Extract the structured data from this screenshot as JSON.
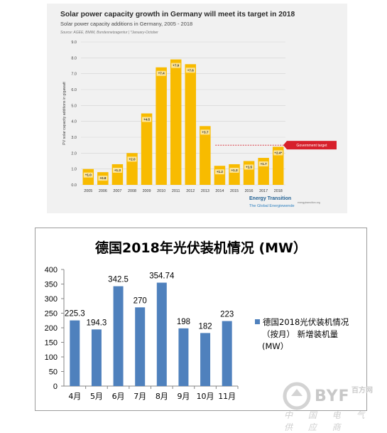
{
  "chart_data": [
    {
      "type": "bar",
      "title": "Solar power capacity growth in Germany will meet its target in 2018",
      "subtitle": "Solar power capacity additions in Germany, 2005 - 2018",
      "source": "Source: AGEE, BMWi, Bundesnetzagentur | *January-October",
      "ylabel": "PV solar capacity additions in gigawatt",
      "ylim": [
        0,
        9
      ],
      "yticks": [
        "0.0",
        "1.0",
        "2.0",
        "3.0",
        "4.0",
        "5.0",
        "6.0",
        "7.0",
        "8.0",
        "9.0"
      ],
      "categories": [
        "2005",
        "2006",
        "2007",
        "2008",
        "2009",
        "2010",
        "2011",
        "2012",
        "2013",
        "2014",
        "2015",
        "2016",
        "2017",
        "2018"
      ],
      "values": [
        1.0,
        0.8,
        1.3,
        2.0,
        4.5,
        7.4,
        7.9,
        7.6,
        3.7,
        1.2,
        1.3,
        1.5,
        1.7,
        2.4
      ],
      "value_labels": [
        "+1.0",
        "+0.8",
        "+1.3",
        "+2.0",
        "+4.5",
        "+7.4",
        "+7.9",
        "+7.6",
        "+3.7",
        "+1.2",
        "+1.3",
        "+1.5",
        "+1.7",
        "+2.4*"
      ],
      "target_label": "Government target",
      "target_value": 2.5,
      "bar_color": "#f8bb00",
      "target_color": "#d7202b",
      "grid": true,
      "branding": {
        "line1": "Energy Transition",
        "line2": "The Global Energiewende",
        "url": "energytransition.org"
      }
    },
    {
      "type": "bar",
      "title": "德国2018年光伏装机情况 (MW）",
      "categories": [
        "4月",
        "5月",
        "6月",
        "7月",
        "8月",
        "9月",
        "10月",
        "11月"
      ],
      "values": [
        225.3,
        194.3,
        342.5,
        270,
        354.74,
        198,
        182,
        223
      ],
      "value_labels": [
        "225.3",
        "194.3",
        "342.5",
        "270",
        "354.74",
        "198",
        "182",
        "223"
      ],
      "ylim": [
        0,
        400
      ],
      "yticks": [
        "0",
        "50",
        "100",
        "150",
        "200",
        "250",
        "300",
        "350",
        "400"
      ],
      "series_name": "德国2018光伏装机情况（按月）新增装机量(MW）",
      "legend_lines": [
        "德国2018光伏装机情况",
        "（按月） 新增装机量",
        "(MW）"
      ],
      "legend_position": "right",
      "bar_color": "#4f81bd"
    }
  ],
  "watermark": {
    "brand": "BYF",
    "cn_mark": "百方网",
    "tagline": "中 国 电 气 供 应 商"
  }
}
